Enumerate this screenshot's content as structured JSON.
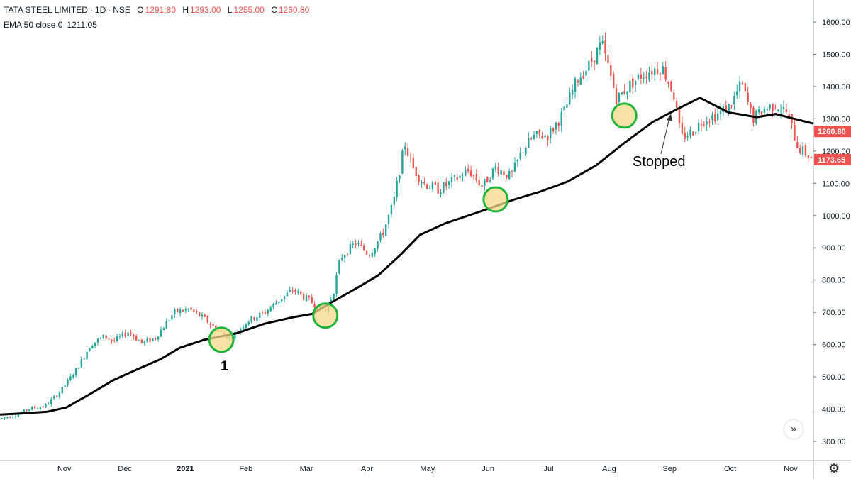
{
  "header": {
    "symbol": "TATA STEEL LIMITED",
    "interval": "1D",
    "exchange": "NSE",
    "sep": "·",
    "ohlc": [
      {
        "key": "O",
        "value": "1291.80"
      },
      {
        "key": "H",
        "value": "1293.00"
      },
      {
        "key": "L",
        "value": "1255.00"
      },
      {
        "key": "C",
        "value": "1260.80"
      }
    ],
    "ema_label": "EMA 50 close 0",
    "ema_value": "1211.05"
  },
  "annotations": {
    "label_1": "1",
    "stopped": "Stopped"
  },
  "icons": {
    "scroll": "double-chevron-right-icon",
    "settings": "gear-icon",
    "scroll_glyph": "»",
    "gear_glyph": "⚙"
  },
  "colors": {
    "up": "#26a69a",
    "down": "#ef5350",
    "ema": "#000000",
    "highlight_fill": "#f6d98a",
    "highlight_stroke": "#1fb43a",
    "price_badge": "#ef5350"
  },
  "chart_data": {
    "type": "candlestick",
    "ylim": [
      250,
      1650
    ],
    "y_ticks": [
      "300.00",
      "400.00",
      "500.00",
      "600.00",
      "700.00",
      "800.00",
      "900.00",
      "1000.00",
      "1100.00",
      "1200.00",
      "1300.00",
      "1400.00",
      "1500.00",
      "1600.00"
    ],
    "x_labels": [
      "Nov",
      "Dec",
      "2021",
      "Feb",
      "Mar",
      "Apr",
      "May",
      "Jun",
      "Jul",
      "Aug",
      "Sep",
      "Oct",
      "Nov"
    ],
    "x_label_days": [
      16,
      48,
      80,
      112,
      144,
      176,
      208,
      240,
      272,
      304,
      336,
      368,
      400
    ],
    "total_days": 430,
    "price_badges": [
      {
        "label": "1260.80",
        "value": 1260.8
      },
      {
        "label": "1173.65",
        "value": 1173.65
      }
    ],
    "ema_series": {
      "name": "EMA 50 close 0",
      "points": [
        [
          0,
          383
        ],
        [
          10,
          386
        ],
        [
          25,
          392
        ],
        [
          35,
          405
        ],
        [
          48,
          448
        ],
        [
          60,
          490
        ],
        [
          72,
          522
        ],
        [
          85,
          555
        ],
        [
          95,
          590
        ],
        [
          108,
          615
        ],
        [
          125,
          635
        ],
        [
          140,
          665
        ],
        [
          155,
          685
        ],
        [
          165,
          695
        ],
        [
          175,
          730
        ],
        [
          190,
          780
        ],
        [
          200,
          815
        ],
        [
          212,
          880
        ],
        [
          222,
          940
        ],
        [
          235,
          975
        ],
        [
          250,
          1005
        ],
        [
          260,
          1025
        ],
        [
          272,
          1050
        ],
        [
          285,
          1073
        ],
        [
          300,
          1105
        ],
        [
          315,
          1155
        ],
        [
          330,
          1225
        ],
        [
          345,
          1290
        ],
        [
          358,
          1330
        ],
        [
          370,
          1365
        ],
        [
          385,
          1320
        ],
        [
          400,
          1305
        ],
        [
          410,
          1315
        ],
        [
          420,
          1300
        ],
        [
          430,
          1285
        ]
      ]
    },
    "price_path": [
      [
        0,
        370
      ],
      [
        10,
        385
      ],
      [
        15,
        400
      ],
      [
        24,
        410
      ],
      [
        32,
        455
      ],
      [
        40,
        520
      ],
      [
        48,
        600
      ],
      [
        55,
        625
      ],
      [
        60,
        610
      ],
      [
        68,
        640
      ],
      [
        75,
        605
      ],
      [
        82,
        620
      ],
      [
        92,
        700
      ],
      [
        100,
        710
      ],
      [
        108,
        680
      ],
      [
        116,
        640
      ],
      [
        122,
        620
      ],
      [
        130,
        670
      ],
      [
        140,
        700
      ],
      [
        148,
        740
      ],
      [
        155,
        770
      ],
      [
        165,
        730
      ],
      [
        172,
        705
      ],
      [
        176,
        755
      ],
      [
        180,
        870
      ],
      [
        188,
        915
      ],
      [
        195,
        880
      ],
      [
        202,
        940
      ],
      [
        208,
        1040
      ],
      [
        214,
        1225
      ],
      [
        218,
        1150
      ],
      [
        224,
        1100
      ],
      [
        232,
        1080
      ],
      [
        240,
        1110
      ],
      [
        248,
        1140
      ],
      [
        255,
        1090
      ],
      [
        262,
        1150
      ],
      [
        270,
        1120
      ],
      [
        276,
        1200
      ],
      [
        282,
        1245
      ],
      [
        290,
        1250
      ],
      [
        298,
        1320
      ],
      [
        305,
        1420
      ],
      [
        312,
        1470
      ],
      [
        318,
        1535
      ],
      [
        322,
        1450
      ],
      [
        326,
        1360
      ],
      [
        332,
        1400
      ],
      [
        338,
        1430
      ],
      [
        344,
        1450
      ],
      [
        350,
        1460
      ],
      [
        356,
        1380
      ],
      [
        360,
        1240
      ],
      [
        366,
        1260
      ],
      [
        372,
        1300
      ],
      [
        378,
        1310
      ],
      [
        386,
        1340
      ],
      [
        392,
        1410
      ],
      [
        398,
        1300
      ],
      [
        404,
        1330
      ],
      [
        410,
        1345
      ],
      [
        416,
        1320
      ],
      [
        422,
        1210
      ],
      [
        430,
        1175
      ]
    ],
    "highlights": [
      {
        "day": 117,
        "value": 615
      },
      {
        "day": 172,
        "value": 690
      },
      {
        "day": 262,
        "value": 1050
      },
      {
        "day": 330,
        "value": 1310
      }
    ],
    "stopped_point": {
      "day": 355,
      "value": 1320
    }
  }
}
